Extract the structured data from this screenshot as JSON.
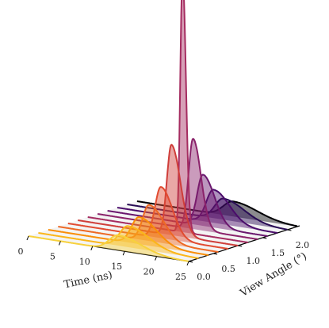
{
  "chart_data": {
    "type": "line",
    "subtype": "3d-waterfall",
    "title": "",
    "xlabel": "Time (ns)",
    "ylabel": "View Angle (°)",
    "xlim": [
      0,
      25
    ],
    "ylim": [
      0,
      2.25
    ],
    "x_ticks": [
      "0",
      "5",
      "10",
      "15",
      "20",
      "25"
    ],
    "x_tick_values": [
      0,
      5,
      10,
      15,
      20,
      25
    ],
    "y_ticks": [
      "0.0",
      "0.5",
      "1.0",
      "1.5",
      "2.0"
    ],
    "y_tick_values": [
      0,
      0.5,
      1.0,
      1.5,
      2.0
    ],
    "colormap": "inferno",
    "fill_under_curves": true,
    "grid": false,
    "series": [
      {
        "angle": 0.0,
        "peak_time": 14.0,
        "amplitude": 0.1,
        "width": 1.4,
        "tail": 0.6,
        "color": "#f7d13d"
      },
      {
        "angle": 0.2,
        "peak_time": 14.0,
        "amplitude": 0.14,
        "width": 1.3,
        "tail": 0.6,
        "color": "#fbb61a"
      },
      {
        "angle": 0.4,
        "peak_time": 14.2,
        "amplitude": 0.18,
        "width": 1.2,
        "tail": 0.5,
        "color": "#f98e09"
      },
      {
        "angle": 0.6,
        "peak_time": 14.2,
        "amplitude": 0.24,
        "width": 1.0,
        "tail": 0.5,
        "color": "#ed6925"
      },
      {
        "angle": 0.8,
        "peak_time": 14.5,
        "amplitude": 0.34,
        "width": 0.9,
        "tail": 0.4,
        "color": "#e14b31"
      },
      {
        "angle": 1.0,
        "peak_time": 14.6,
        "amplitude": 0.6,
        "width": 0.7,
        "tail": 0.4,
        "color": "#cf3e3a"
      },
      {
        "angle": 1.2,
        "peak_time": 14.8,
        "amplitude": 1.7,
        "width": 0.35,
        "tail": 0.2,
        "color": "#a52c60"
      },
      {
        "angle": 1.4,
        "peak_time": 14.9,
        "amplitude": 0.6,
        "width": 0.7,
        "tail": 0.3,
        "color": "#8a226a"
      },
      {
        "angle": 1.6,
        "peak_time": 14.9,
        "amplitude": 0.34,
        "width": 0.9,
        "tail": 0.4,
        "color": "#6a176e"
      },
      {
        "angle": 1.8,
        "peak_time": 15.0,
        "amplitude": 0.22,
        "width": 1.1,
        "tail": 0.5,
        "color": "#4a0c6b"
      },
      {
        "angle": 2.0,
        "peak_time": 15.0,
        "amplitude": 0.14,
        "width": 1.3,
        "tail": 0.6,
        "color": "#280b54"
      },
      {
        "angle": 2.2,
        "peak_time": 15.0,
        "amplitude": 0.1,
        "width": 1.5,
        "tail": 0.6,
        "color": "#000004"
      }
    ]
  }
}
